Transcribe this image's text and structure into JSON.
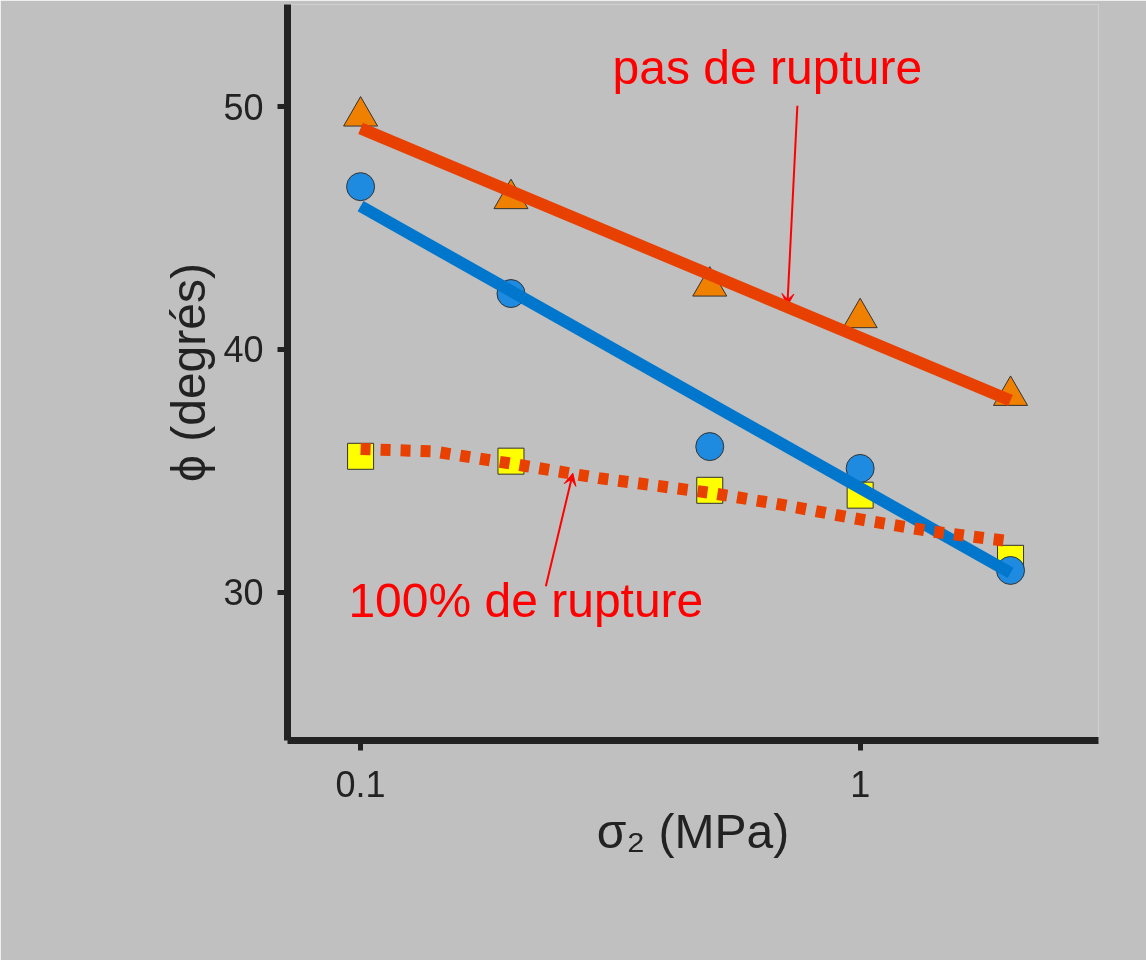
{
  "chart_data": {
    "type": "scatter",
    "xlabel": "σ₂ (MPa)",
    "ylabel": "ϕ (degrés)",
    "log": "x",
    "xlim": [
      0.0714,
      3.0
    ],
    "ylim": [
      23.9,
      54.2
    ],
    "xticks": [
      0.1,
      1
    ],
    "yticks": [
      30,
      40,
      50
    ],
    "grid": false,
    "x": [
      0.1,
      0.2,
      0.5,
      1,
      2
    ],
    "series": [
      {
        "type": "line",
        "color": "#e84000",
        "line_style": "solid",
        "marker": "none",
        "x": [
          0.1,
          2
        ],
        "values": [
          49.1,
          37.9
        ]
      },
      {
        "type": "line",
        "color": "#0077cc",
        "line_style": "solid",
        "marker": "none",
        "x": [
          0.1,
          2
        ],
        "values": [
          45.9,
          30.8
        ]
      },
      {
        "type": "line",
        "color": "#e84000",
        "line_style": "dotted",
        "marker": "none",
        "x": [
          0.1,
          0.14,
          0.2,
          0.3,
          0.5,
          0.7,
          1,
          1.4,
          2
        ],
        "values": [
          35.9,
          35.8,
          35.3,
          34.7,
          34.1,
          33.6,
          33.0,
          32.5,
          32.1
        ]
      },
      {
        "color": "#f08000",
        "marker": "triangle",
        "values": [
          49.6,
          46.2,
          42.6,
          41.3,
          38.1
        ]
      },
      {
        "color": "#ffff00",
        "marker": "square",
        "values": [
          35.6,
          35.4,
          34.2,
          34.0,
          31.4
        ]
      },
      {
        "color": "#1e8be0",
        "marker": "circle",
        "values": [
          46.7,
          42.3,
          36.0,
          35.1,
          30.9
        ]
      }
    ],
    "annotations": [
      {
        "text": "pas de rupture",
        "x": 0.715,
        "y": 41.8
      },
      {
        "text": "100% de rupture",
        "x": 0.266,
        "y": 34.9
      }
    ]
  }
}
